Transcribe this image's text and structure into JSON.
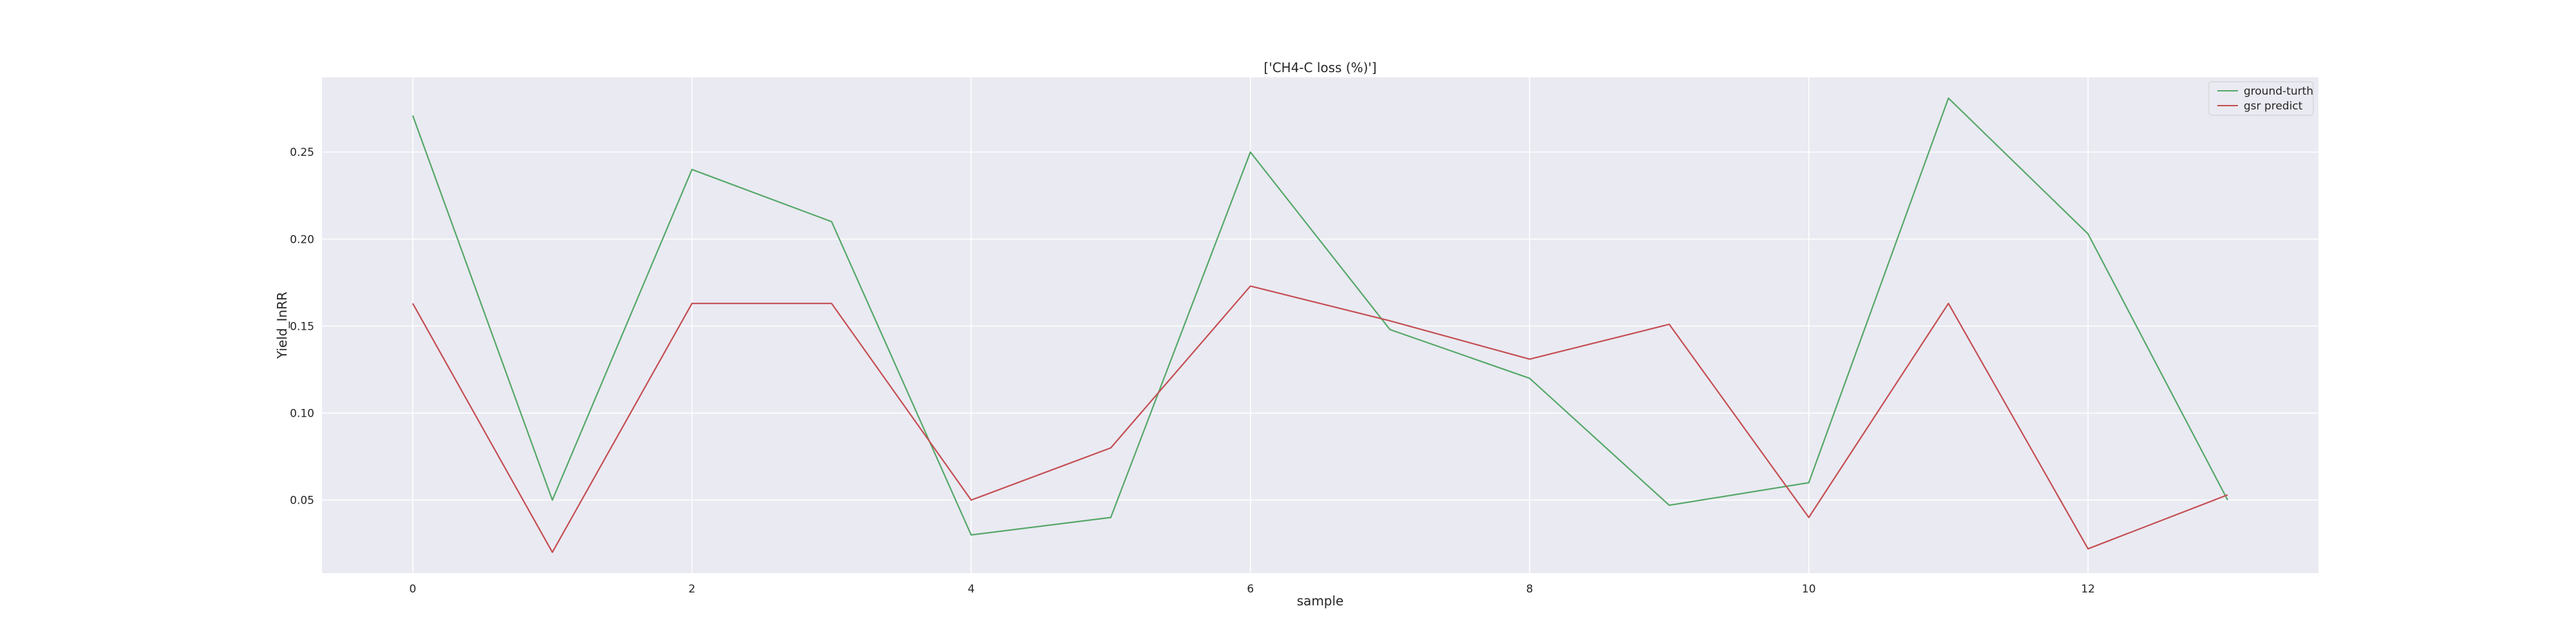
{
  "chart_data": {
    "type": "line",
    "title": "['CH4-C loss (%)']",
    "xlabel": "sample",
    "ylabel": "Yield_InRR",
    "x": [
      0,
      1,
      2,
      3,
      4,
      5,
      6,
      7,
      8,
      9,
      10,
      11,
      12,
      13
    ],
    "xlim": [
      -0.65,
      13.65
    ],
    "ylim": [
      0.008,
      0.293
    ],
    "xticks": [
      0,
      2,
      4,
      6,
      8,
      10,
      12
    ],
    "yticks": [
      0.05,
      0.1,
      0.15,
      0.2,
      0.25
    ],
    "xtick_labels": [
      "0",
      "2",
      "4",
      "6",
      "8",
      "10",
      "12"
    ],
    "ytick_labels": [
      "0.05",
      "0.10",
      "0.15",
      "0.20",
      "0.25"
    ],
    "grid": true,
    "legend_position": "top-right",
    "series": [
      {
        "name": "ground-turth",
        "color": "#55a868",
        "values": [
          0.271,
          0.05,
          0.24,
          0.21,
          0.03,
          0.04,
          0.25,
          0.148,
          0.12,
          0.047,
          0.06,
          0.281,
          0.203,
          0.05
        ]
      },
      {
        "name": "gsr predict",
        "color": "#c44e52",
        "values": [
          0.163,
          0.02,
          0.163,
          0.163,
          0.05,
          0.08,
          0.173,
          0.153,
          0.131,
          0.151,
          0.04,
          0.163,
          0.022,
          0.053
        ]
      }
    ]
  },
  "colors": {
    "plot_background": "#eaeaf2",
    "grid": "#ffffff",
    "text": "#262626"
  }
}
